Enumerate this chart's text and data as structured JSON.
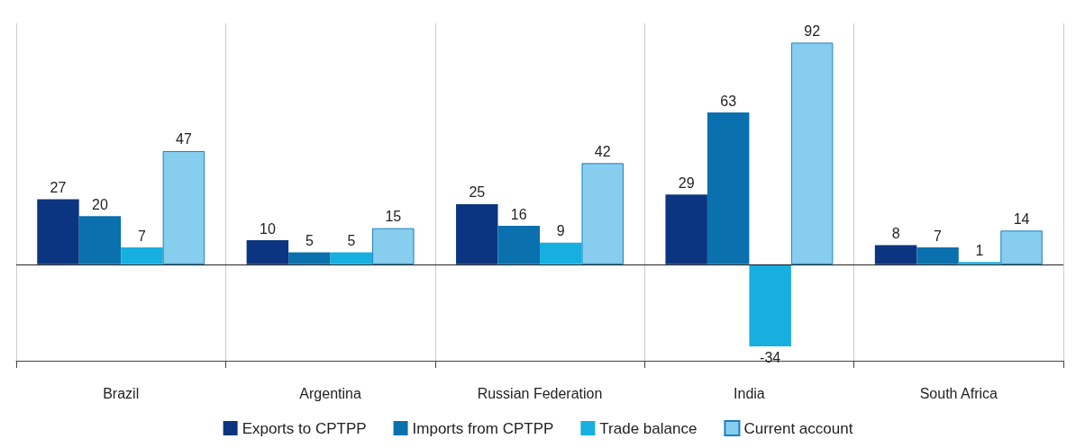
{
  "chart_data": {
    "type": "bar",
    "categories": [
      "Brazil",
      "Argentina",
      "Russian Federation",
      "India",
      "South Africa"
    ],
    "series": [
      {
        "name": "Exports to CPTPP",
        "color": "#0b3580",
        "values": [
          27,
          10,
          25,
          29,
          8
        ]
      },
      {
        "name": "Imports from CPTPP",
        "color": "#0a70ae",
        "values": [
          20,
          5,
          16,
          63,
          7
        ]
      },
      {
        "name": "Trade balance",
        "color": "#16afe0",
        "values": [
          7,
          5,
          9,
          -34,
          1
        ]
      },
      {
        "name": "Current account",
        "color": "#87ceee",
        "values": [
          47,
          15,
          42,
          92,
          14
        ]
      }
    ],
    "ylim": [
      -40,
      100
    ],
    "tick_labels": "x",
    "data_labels": true,
    "grid": "x",
    "legend": "bottom",
    "ref_lines": [
      {
        "axis": "y",
        "value": 0,
        "color": "#222222"
      }
    ]
  }
}
